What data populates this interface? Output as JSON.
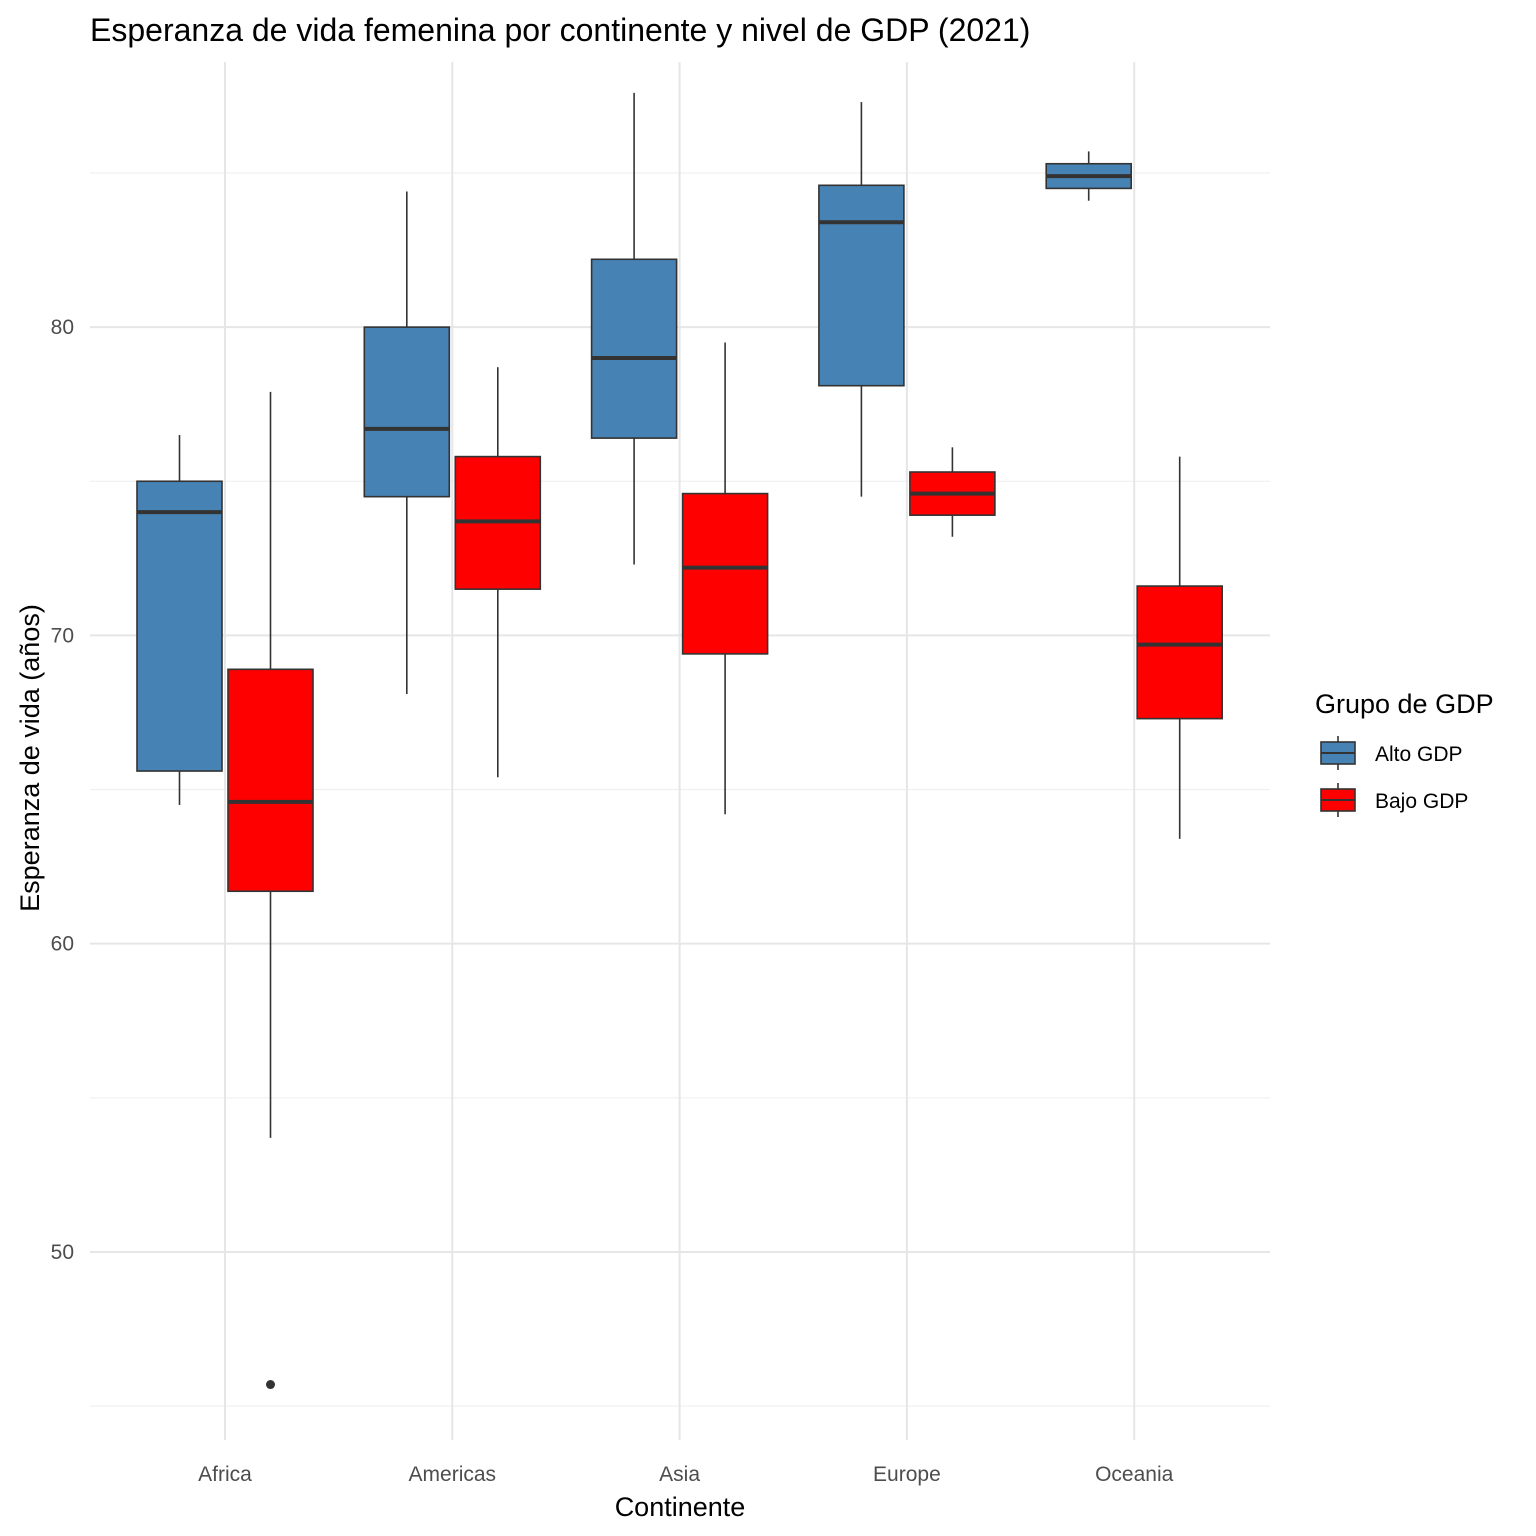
{
  "chart_data": {
    "type": "boxplot",
    "title": "Esperanza de vida femenina por continente y nivel de GDP (2021)",
    "xlabel": "Continente",
    "ylabel": "Esperanza de vida (años)",
    "ylim": [
      43.9,
      88.6
    ],
    "y_ticks": [
      50,
      60,
      70,
      80
    ],
    "categories": [
      "Africa",
      "Americas",
      "Asia",
      "Europe",
      "Oceania"
    ],
    "legend": {
      "title": "Grupo de GDP",
      "position": "right"
    },
    "series": [
      {
        "name": "Alto GDP",
        "color": "#4682B4",
        "boxes": [
          {
            "category": "Africa",
            "low": 64.5,
            "q1": 65.6,
            "median": 74.0,
            "q3": 75.0,
            "high": 76.5,
            "outliers": []
          },
          {
            "category": "Americas",
            "low": 68.1,
            "q1": 74.5,
            "median": 76.7,
            "q3": 80.0,
            "high": 84.4,
            "outliers": []
          },
          {
            "category": "Asia",
            "low": 72.3,
            "q1": 76.4,
            "median": 79.0,
            "q3": 82.2,
            "high": 87.6,
            "outliers": []
          },
          {
            "category": "Europe",
            "low": 74.5,
            "q1": 78.1,
            "median": 83.4,
            "q3": 84.6,
            "high": 87.3,
            "outliers": []
          },
          {
            "category": "Oceania",
            "low": 84.1,
            "q1": 84.5,
            "median": 84.9,
            "q3": 85.3,
            "high": 85.7,
            "outliers": []
          }
        ]
      },
      {
        "name": "Bajo GDP",
        "color": "#FF0000",
        "boxes": [
          {
            "category": "Africa",
            "low": 53.7,
            "q1": 61.7,
            "median": 64.6,
            "q3": 68.9,
            "high": 77.9,
            "outliers": [
              45.7
            ]
          },
          {
            "category": "Americas",
            "low": 65.4,
            "q1": 71.5,
            "median": 73.7,
            "q3": 75.8,
            "high": 78.7,
            "outliers": []
          },
          {
            "category": "Asia",
            "low": 64.2,
            "q1": 69.4,
            "median": 72.2,
            "q3": 74.6,
            "high": 79.5,
            "outliers": []
          },
          {
            "category": "Europe",
            "low": 73.2,
            "q1": 73.9,
            "median": 74.6,
            "q3": 75.3,
            "high": 76.1,
            "outliers": []
          },
          {
            "category": "Oceania",
            "low": 63.4,
            "q1": 67.3,
            "median": 69.7,
            "q3": 71.6,
            "high": 75.8,
            "outliers": []
          }
        ]
      }
    ]
  }
}
